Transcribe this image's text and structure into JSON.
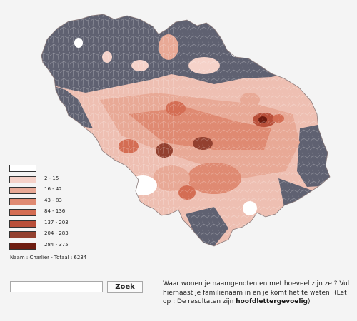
{
  "legend": {
    "items": [
      {
        "label": "1",
        "color": "#ffffff"
      },
      {
        "label": "2 - 15",
        "color": "#f5d2c9"
      },
      {
        "label": "16 - 42",
        "color": "#e8a996"
      },
      {
        "label": "43 - 83",
        "color": "#df8a72"
      },
      {
        "label": "84 - 136",
        "color": "#d46d53"
      },
      {
        "label": "137 - 203",
        "color": "#b94f39"
      },
      {
        "label": "204 - 283",
        "color": "#93402f"
      },
      {
        "label": "284 - 375",
        "color": "#6e1c10"
      }
    ]
  },
  "result": {
    "summary": "Naam : Charlier - Totaal : 6234"
  },
  "search": {
    "input_value": "",
    "button_label": "Zoek"
  },
  "help": {
    "text": "Waar wonen je naamgenoten en met hoeveel zijn ze ? Vul hiernaast je familienaam in en je komt het te weten! (Let op : De resultaten zijn ",
    "emphasis": "hoofdlettergevoelig",
    "closing": ")"
  },
  "map": {
    "no_data_color": "#5f6171",
    "border_color": "#8b7b7b"
  }
}
